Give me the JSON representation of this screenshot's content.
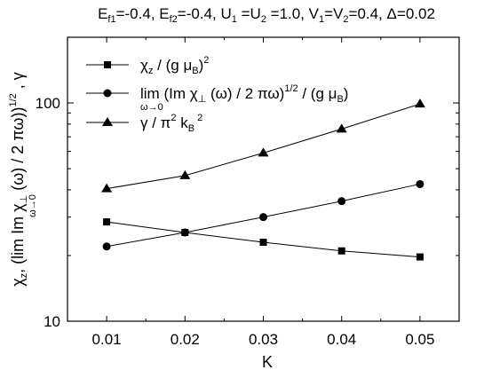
{
  "chart_data": {
    "type": "line",
    "title": "E_f1=-0.4, E_f2=-0.4, U_1 =U_2 =1.0, V_1=V_2=0.4, Δ=0.02",
    "xlabel": "K",
    "ylabel": "χ_z, (lim Im χ_⊥ (ω) / 2 πω)^1/2 , γ",
    "ylabel_sub": "ω→0",
    "yscale": "log",
    "xlim": [
      0.005,
      0.055
    ],
    "ylim": [
      10,
      200
    ],
    "x": [
      0.01,
      0.02,
      0.03,
      0.04,
      0.05
    ],
    "x_ticklabels": [
      "0.01",
      "0.02",
      "0.03",
      "0.04",
      "0.05"
    ],
    "y_ticks": [
      10,
      100
    ],
    "y_ticklabels": [
      "10",
      "100"
    ],
    "series": [
      {
        "name": "χ_z / (g μ_B)^2",
        "marker": "square",
        "values": [
          28.5,
          25.5,
          23.0,
          21.0,
          19.7
        ]
      },
      {
        "name": "lim (Im χ_⊥ (ω) / 2 πω)^1/2 / (g μ_B)",
        "marker": "circle",
        "values": [
          22.0,
          25.5,
          30.0,
          35.5,
          42.5
        ]
      },
      {
        "name": "γ / π^2 k_B^2",
        "marker": "triangle",
        "values": [
          40.5,
          46.5,
          59.0,
          76.0,
          99.0
        ]
      }
    ],
    "legend_position": "top-left",
    "grid": false
  }
}
